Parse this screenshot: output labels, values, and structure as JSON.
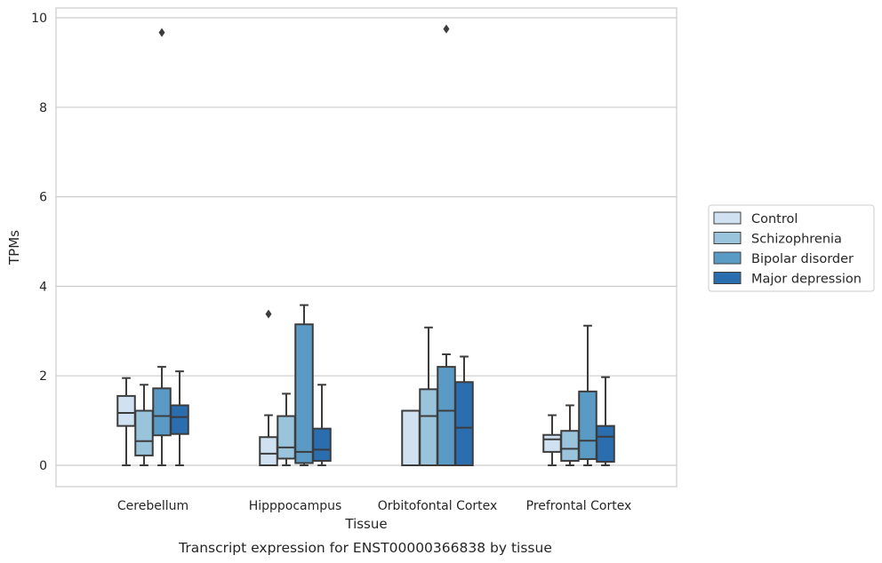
{
  "chart_data": {
    "type": "boxplot",
    "title": "Transcript expression for ENST00000366838 by tissue",
    "xlabel": "Tissue",
    "ylabel": "TPMs",
    "ylim": [
      -0.45,
      10.2
    ],
    "yticks": [
      0,
      2,
      4,
      6,
      8,
      10
    ],
    "grid": "horizontal",
    "legend_position": "right",
    "categories": [
      "Cerebellum",
      "Hipppocampus",
      "Orbitofontal Cortex",
      "Prefrontal Cortex"
    ],
    "series": [
      {
        "name": "Control",
        "color": "#d0e1f2",
        "boxes": [
          {
            "whislo": 0.0,
            "q1": 0.88,
            "median": 1.17,
            "q3": 1.55,
            "whishi": 1.95,
            "fliers": []
          },
          {
            "whislo": 0.0,
            "q1": 0.0,
            "median": 0.26,
            "q3": 0.63,
            "whishi": 1.12,
            "fliers": [
              3.38
            ]
          },
          {
            "whislo": 0.0,
            "q1": 0.0,
            "median": 0.0,
            "q3": 1.22,
            "whishi": 1.22,
            "fliers": []
          },
          {
            "whislo": 0.0,
            "q1": 0.3,
            "median": 0.58,
            "q3": 0.68,
            "whishi": 1.12,
            "fliers": []
          }
        ]
      },
      {
        "name": "Schizophrenia",
        "color": "#9ac3dc",
        "boxes": [
          {
            "whislo": 0.0,
            "q1": 0.22,
            "median": 0.54,
            "q3": 1.22,
            "whishi": 1.8,
            "fliers": []
          },
          {
            "whislo": 0.0,
            "q1": 0.15,
            "median": 0.4,
            "q3": 1.1,
            "whishi": 1.6,
            "fliers": []
          },
          {
            "whislo": 0.0,
            "q1": 0.0,
            "median": 1.1,
            "q3": 1.7,
            "whishi": 3.08,
            "fliers": []
          },
          {
            "whislo": 0.0,
            "q1": 0.1,
            "median": 0.37,
            "q3": 0.77,
            "whishi": 1.34,
            "fliers": []
          }
        ]
      },
      {
        "name": "Bipolar disorder",
        "color": "#5a9bc6",
        "boxes": [
          {
            "whislo": 0.0,
            "q1": 0.67,
            "median": 1.1,
            "q3": 1.72,
            "whishi": 2.2,
            "fliers": [
              9.67
            ]
          },
          {
            "whislo": 0.0,
            "q1": 0.05,
            "median": 0.3,
            "q3": 3.15,
            "whishi": 3.58,
            "fliers": []
          },
          {
            "whislo": 0.0,
            "q1": 0.0,
            "median": 1.22,
            "q3": 2.2,
            "whishi": 2.48,
            "fliers": [
              9.75
            ]
          },
          {
            "whislo": 0.0,
            "q1": 0.14,
            "median": 0.55,
            "q3": 1.65,
            "whishi": 3.12,
            "fliers": []
          }
        ]
      },
      {
        "name": "Major depression",
        "color": "#2a6eb0",
        "boxes": [
          {
            "whislo": 0.0,
            "q1": 0.7,
            "median": 1.08,
            "q3": 1.34,
            "whishi": 2.1,
            "fliers": []
          },
          {
            "whislo": 0.0,
            "q1": 0.1,
            "median": 0.35,
            "q3": 0.82,
            "whishi": 1.8,
            "fliers": []
          },
          {
            "whislo": 0.0,
            "q1": 0.0,
            "median": 0.84,
            "q3": 1.86,
            "whishi": 2.43,
            "fliers": []
          },
          {
            "whislo": 0.0,
            "q1": 0.08,
            "median": 0.64,
            "q3": 0.88,
            "whishi": 1.97,
            "fliers": []
          }
        ]
      }
    ]
  }
}
